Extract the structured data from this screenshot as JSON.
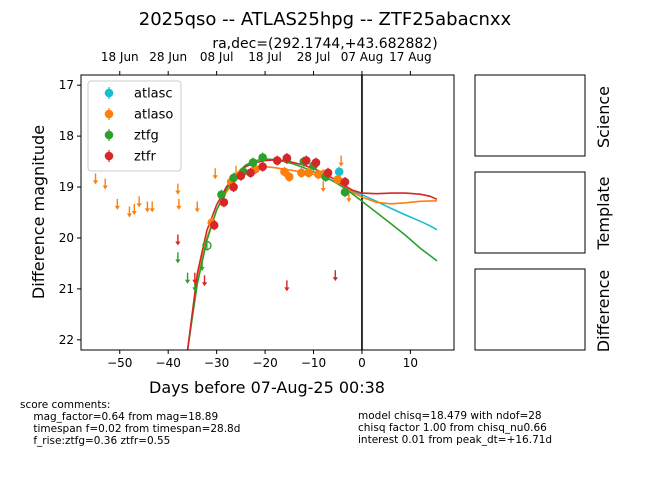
{
  "chart_data": {
    "type": "scatter",
    "title": "2025qso -- ATLAS25hpg -- ZTF25abacnxx",
    "subtitle": "ra,dec=(292.1744,+43.682882)",
    "xlabel": "Days before 07-Aug-25 00:38",
    "ylabel": "Difference magnitude",
    "xlim": [
      -58,
      19
    ],
    "ylim": [
      22.2,
      16.8
    ],
    "x_ticks": [
      -50,
      -40,
      -30,
      -20,
      -10,
      0,
      10
    ],
    "x_tick_labels": [
      "−50",
      "−40",
      "−30",
      "−20",
      "−10",
      "0",
      "10"
    ],
    "y_ticks": [
      17,
      18,
      19,
      20,
      21,
      22
    ],
    "y_tick_labels": [
      "17",
      "18",
      "19",
      "20",
      "21",
      "22"
    ],
    "top_ticks": [
      {
        "x": -50,
        "label": "18 Jun"
      },
      {
        "x": -40,
        "label": "28 Jun"
      },
      {
        "x": -30,
        "label": "08 Jul"
      },
      {
        "x": -20,
        "label": "18 Jul"
      },
      {
        "x": -10,
        "label": "28 Jul"
      },
      {
        "x": 0,
        "label": "07 Aug"
      },
      {
        "x": 10,
        "label": "17 Aug"
      }
    ],
    "vline_x": 0,
    "legend_position": "top-left",
    "series": [
      {
        "name": "atlasc",
        "color": "#17becf",
        "points": [
          {
            "x": -4.7,
            "y": 18.7
          }
        ],
        "upper_limits": [],
        "model": [
          [
            -3,
            19.05
          ],
          [
            0,
            19.15
          ],
          [
            3,
            19.28
          ],
          [
            6,
            19.42
          ],
          [
            9,
            19.55
          ],
          [
            12,
            19.67
          ],
          [
            14,
            19.76
          ],
          [
            15.5,
            19.84
          ]
        ]
      },
      {
        "name": "atlaso",
        "color": "#ff7f0e",
        "points": [
          {
            "x": -31,
            "y": 19.7
          },
          {
            "x": -27,
            "y": 18.9
          },
          {
            "x": -25,
            "y": 18.75
          },
          {
            "x": -22,
            "y": 18.65
          },
          {
            "x": -16,
            "y": 18.7
          },
          {
            "x": -15,
            "y": 18.8
          },
          {
            "x": -12.5,
            "y": 18.72
          },
          {
            "x": -11,
            "y": 18.72
          },
          {
            "x": -9,
            "y": 18.75
          },
          {
            "x": -8,
            "y": 18.75
          },
          {
            "x": -5,
            "y": 18.85
          }
        ],
        "upper_limits": [
          {
            "x": -55,
            "y": 18.85
          },
          {
            "x": -53,
            "y": 18.95
          },
          {
            "x": -50.5,
            "y": 19.35
          },
          {
            "x": -48,
            "y": 19.5
          },
          {
            "x": -47,
            "y": 19.45
          },
          {
            "x": -46,
            "y": 19.3
          },
          {
            "x": -44.3,
            "y": 19.4
          },
          {
            "x": -43.3,
            "y": 19.4
          },
          {
            "x": -38,
            "y": 19.05
          },
          {
            "x": -37.8,
            "y": 19.35
          },
          {
            "x": -34,
            "y": 19.4
          },
          {
            "x": -30.3,
            "y": 18.75
          },
          {
            "x": -26,
            "y": 18.7
          },
          {
            "x": -8,
            "y": 19.0
          },
          {
            "x": -4.3,
            "y": 18.5
          },
          {
            "x": -2.7,
            "y": 19.2
          }
        ],
        "model": [
          [
            -36,
            22.2
          ],
          [
            -34,
            20.8
          ],
          [
            -32,
            20.0
          ],
          [
            -30,
            19.45
          ],
          [
            -28,
            19.1
          ],
          [
            -26,
            18.85
          ],
          [
            -24,
            18.7
          ],
          [
            -22,
            18.62
          ],
          [
            -20,
            18.6
          ],
          [
            -18,
            18.62
          ],
          [
            -16,
            18.65
          ],
          [
            -14,
            18.68
          ],
          [
            -12,
            18.72
          ],
          [
            -10,
            18.75
          ],
          [
            -8,
            18.8
          ],
          [
            -6,
            18.88
          ],
          [
            -4,
            18.97
          ],
          [
            -2,
            19.1
          ],
          [
            0,
            19.2
          ],
          [
            3,
            19.3
          ],
          [
            6,
            19.33
          ],
          [
            9,
            19.31
          ],
          [
            12,
            19.28
          ],
          [
            15.5,
            19.27
          ]
        ]
      },
      {
        "name": "ztfg",
        "color": "#2ca02c",
        "points": [
          {
            "x": -32,
            "y": 20.15,
            "hollow": true
          },
          {
            "x": -29,
            "y": 19.15
          },
          {
            "x": -26.5,
            "y": 18.82
          },
          {
            "x": -24.5,
            "y": 18.7
          },
          {
            "x": -22.5,
            "y": 18.52
          },
          {
            "x": -20.5,
            "y": 18.42
          },
          {
            "x": -15.5,
            "y": 18.45
          },
          {
            "x": -12,
            "y": 18.5
          },
          {
            "x": -10,
            "y": 18.58
          },
          {
            "x": -7.5,
            "y": 18.8
          },
          {
            "x": -3.5,
            "y": 19.1
          }
        ],
        "upper_limits": [
          {
            "x": -38,
            "y": 20.4
          },
          {
            "x": -36,
            "y": 20.8
          },
          {
            "x": -34.5,
            "y": 20.95
          },
          {
            "x": -33,
            "y": 20.55
          }
        ],
        "model": [
          [
            -36,
            22.2
          ],
          [
            -34,
            20.9
          ],
          [
            -32,
            20.05
          ],
          [
            -30,
            19.45
          ],
          [
            -28,
            19.05
          ],
          [
            -26,
            18.75
          ],
          [
            -24,
            18.57
          ],
          [
            -22,
            18.48
          ],
          [
            -20,
            18.45
          ],
          [
            -18,
            18.46
          ],
          [
            -16,
            18.5
          ],
          [
            -14,
            18.55
          ],
          [
            -12,
            18.62
          ],
          [
            -10,
            18.7
          ],
          [
            -8,
            18.78
          ],
          [
            -6,
            18.88
          ],
          [
            -4,
            19.0
          ],
          [
            -2,
            19.13
          ],
          [
            0,
            19.28
          ],
          [
            3,
            19.5
          ],
          [
            6,
            19.72
          ],
          [
            9,
            19.95
          ],
          [
            12,
            20.2
          ],
          [
            15.5,
            20.45
          ]
        ]
      },
      {
        "name": "ztfr",
        "color": "#d62728",
        "points": [
          {
            "x": -30.5,
            "y": 19.75
          },
          {
            "x": -28.5,
            "y": 19.3
          },
          {
            "x": -26.5,
            "y": 19.0
          },
          {
            "x": -25,
            "y": 18.78
          },
          {
            "x": -23,
            "y": 18.72
          },
          {
            "x": -20.5,
            "y": 18.6
          },
          {
            "x": -17.5,
            "y": 18.48
          },
          {
            "x": -15.5,
            "y": 18.43
          },
          {
            "x": -11.5,
            "y": 18.48
          },
          {
            "x": -9.5,
            "y": 18.52
          },
          {
            "x": -7,
            "y": 18.72
          },
          {
            "x": -3.5,
            "y": 18.9
          }
        ],
        "upper_limits": [
          {
            "x": -38,
            "y": 20.05
          },
          {
            "x": -34.5,
            "y": 20.8
          },
          {
            "x": -32.5,
            "y": 20.85
          },
          {
            "x": -15.5,
            "y": 20.95
          },
          {
            "x": -5.5,
            "y": 20.75
          }
        ],
        "model": [
          [
            -36,
            22.2
          ],
          [
            -34,
            20.7
          ],
          [
            -32,
            19.85
          ],
          [
            -30,
            19.35
          ],
          [
            -28,
            19.0
          ],
          [
            -26,
            18.75
          ],
          [
            -24,
            18.6
          ],
          [
            -22,
            18.52
          ],
          [
            -20,
            18.48
          ],
          [
            -18,
            18.47
          ],
          [
            -16,
            18.48
          ],
          [
            -14,
            18.52
          ],
          [
            -12,
            18.57
          ],
          [
            -10,
            18.64
          ],
          [
            -8,
            18.72
          ],
          [
            -6,
            18.83
          ],
          [
            -4,
            18.95
          ],
          [
            -2,
            19.06
          ],
          [
            0,
            19.12
          ],
          [
            3,
            19.13
          ],
          [
            6,
            19.12
          ],
          [
            9,
            19.12
          ],
          [
            12,
            19.14
          ],
          [
            14,
            19.18
          ],
          [
            15.5,
            19.24
          ]
        ]
      }
    ]
  },
  "side_panels": {
    "labels": [
      "Science",
      "Template",
      "Difference"
    ]
  },
  "comments": {
    "left": "score comments:\n    mag_factor=0.64 from mag=18.89\n    timespan f=0.02 from timespan=28.8d\n    f_rise:ztfg=0.36 ztfr=0.55",
    "right": "model chisq=18.479 with ndof=28\nchisq factor 1.00 from chisq_nu0.66\ninterest 0.01 from peak_dt=+16.71d"
  }
}
